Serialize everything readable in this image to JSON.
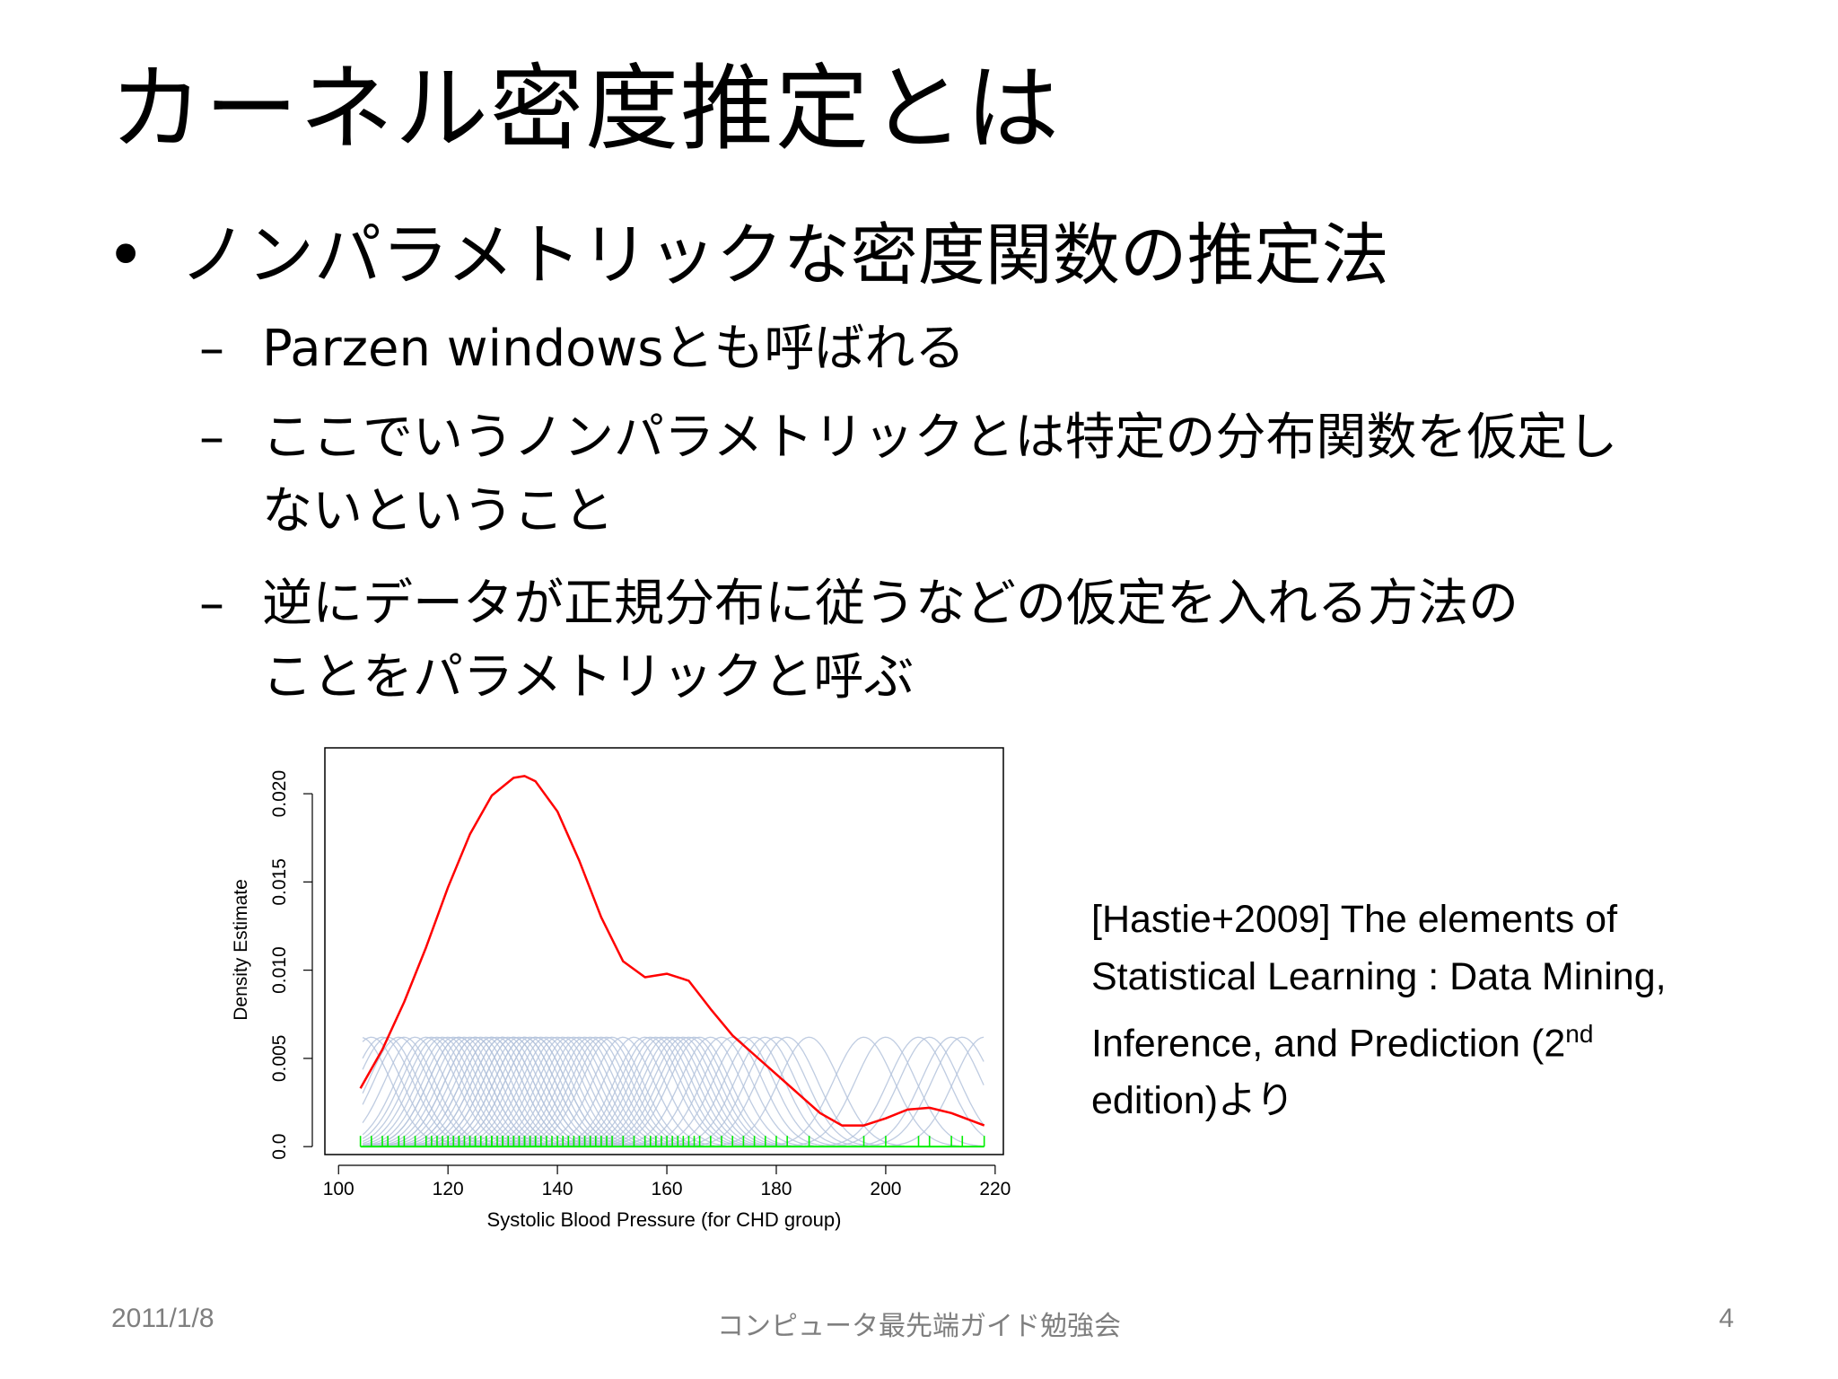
{
  "slide": {
    "title": "カーネル密度推定とは",
    "bullet": {
      "marker": "•",
      "text": "ノンパラメトリックな密度関数の推定法"
    },
    "subbullets": [
      {
        "dash": "–",
        "lines": [
          "Parzen windowsとも呼ばれる"
        ]
      },
      {
        "dash": "–",
        "lines": [
          "ここでいうノンパラメトリックとは特定の分布関数を仮定し",
          "ないということ"
        ]
      },
      {
        "dash": "–",
        "lines": [
          "逆にデータが正規分布に従うなどの仮定を入れる方法の",
          "ことをパラメトリックと呼ぶ"
        ]
      }
    ],
    "citation": {
      "line1": "[Hastie+2009] The elements of",
      "line2": "Statistical Learning : Data Mining,",
      "line3_pre": "Inference, and Prediction (2",
      "line3_sup": "nd",
      "line4": "edition)より"
    },
    "footer": {
      "date": "2011/1/8",
      "event": "コンピュータ最先端ガイド勉強会",
      "page": "4"
    }
  },
  "chart_data": {
    "type": "line",
    "xlabel": "Systolic Blood Pressure (for CHD group)",
    "ylabel": "Density Estimate",
    "xlim": [
      100,
      220
    ],
    "ylim": [
      0,
      0.022
    ],
    "x_ticks": [
      "100",
      "120",
      "140",
      "160",
      "180",
      "200",
      "220"
    ],
    "y_ticks": [
      "0.0",
      "0.005",
      "0.010",
      "0.015",
      "0.020"
    ],
    "grid": false,
    "series": [
      {
        "color": "#ff0000",
        "x": [
          104,
          108,
          112,
          116,
          120,
          124,
          128,
          132,
          134,
          136,
          140,
          144,
          148,
          152,
          156,
          160,
          164,
          168,
          172,
          176,
          180,
          184,
          188,
          192,
          196,
          200,
          204,
          208,
          212,
          218
        ],
        "y": [
          0.0033,
          0.0055,
          0.0082,
          0.0113,
          0.0147,
          0.0177,
          0.0199,
          0.0209,
          0.021,
          0.0207,
          0.019,
          0.0162,
          0.013,
          0.0105,
          0.0096,
          0.0098,
          0.0094,
          0.0078,
          0.0063,
          0.0052,
          0.0041,
          0.003,
          0.0019,
          0.0012,
          0.0012,
          0.0016,
          0.0021,
          0.0022,
          0.0019,
          0.0012
        ]
      }
    ],
    "kernel_color": "#b4c3dc",
    "rug_color": "#00ee00",
    "kernel_height": 0.0062,
    "kernel_bandwidth": 5.5,
    "observations": [
      104,
      106,
      108,
      109,
      111,
      112,
      114,
      116,
      117,
      118,
      119,
      120,
      121,
      122,
      122,
      123,
      124,
      125,
      125,
      126,
      127,
      128,
      128,
      129,
      130,
      130,
      131,
      132,
      132,
      133,
      134,
      134,
      135,
      136,
      136,
      137,
      138,
      139,
      140,
      141,
      142,
      143,
      144,
      145,
      146,
      147,
      148,
      149,
      150,
      152,
      154,
      156,
      157,
      158,
      159,
      160,
      161,
      162,
      163,
      164,
      165,
      166,
      168,
      170,
      172,
      174,
      176,
      178,
      180,
      182,
      186,
      196,
      200,
      206,
      208,
      212,
      214,
      218
    ]
  }
}
